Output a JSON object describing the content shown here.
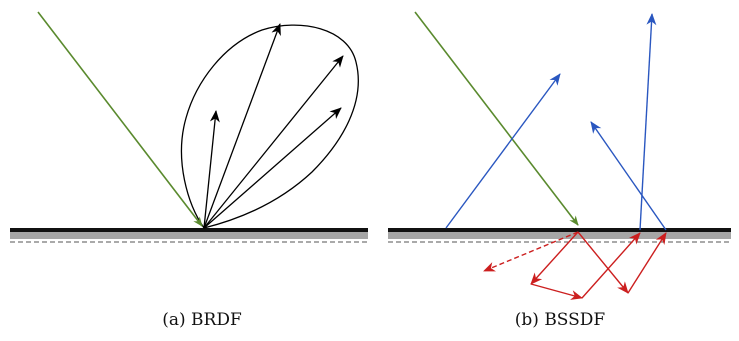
{
  "captions": {
    "a": "(a) BRDF",
    "b": "(b) BSSDF"
  },
  "colors": {
    "incident": "#5a8a2e",
    "reflected": "#000000",
    "surface_reflected": "#2a57c0",
    "subsurface": "#cc1f1f",
    "surface_top": "#111111",
    "surface_fill": "#a6a6a6"
  }
}
